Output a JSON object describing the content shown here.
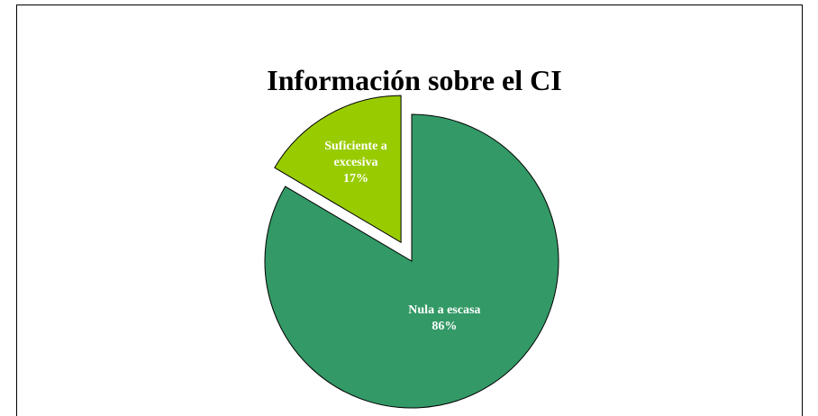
{
  "chart_data": {
    "type": "pie",
    "title": "Información sobre el CI",
    "categories": [
      "Nula a escasa",
      "Suficiente a excesiva"
    ],
    "values": [
      86,
      17
    ],
    "value_labels": [
      "86%",
      "17%"
    ],
    "colors": [
      "#339966",
      "#99cc00"
    ]
  }
}
